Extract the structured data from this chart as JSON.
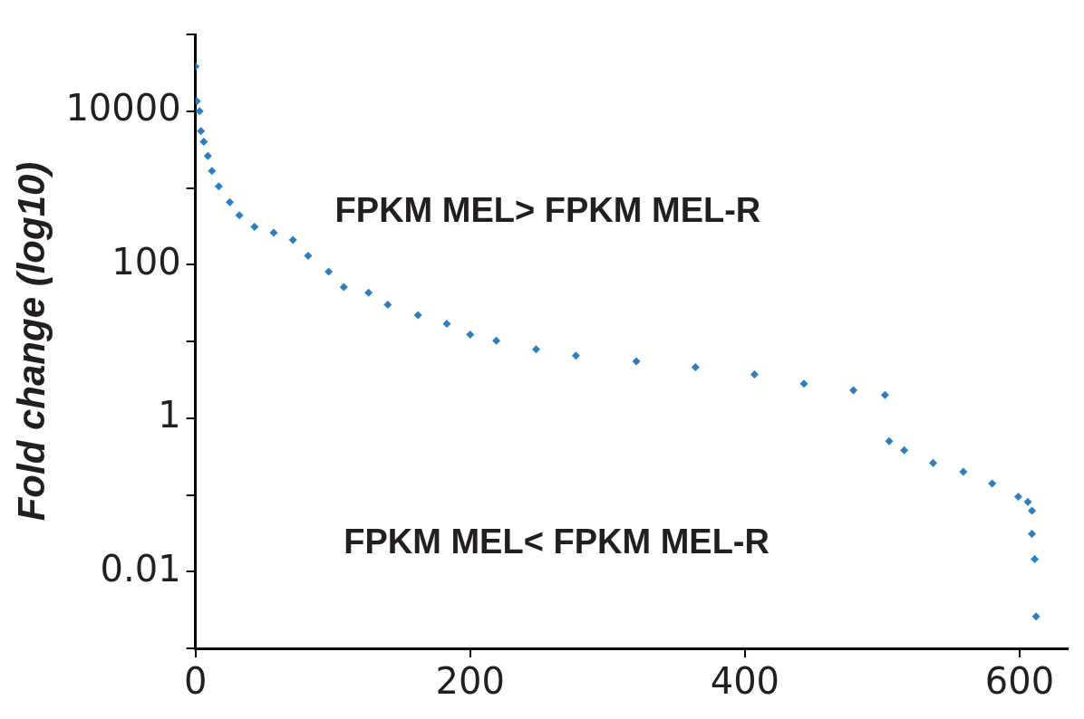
{
  "chart_data": {
    "type": "scatter",
    "ylabel": "Fold change (log10)",
    "log": "y",
    "marker": "diamond",
    "grid": false,
    "legend": false,
    "xlim": [
      0,
      635
    ],
    "xticks": [
      0,
      200,
      400,
      600
    ],
    "ylim": [
      0.001,
      100000
    ],
    "yticks": [
      {
        "value": 0.001,
        "label": null
      },
      0.01,
      {
        "value": 0.1,
        "label": null
      },
      1,
      {
        "value": 10,
        "label": null
      },
      100,
      {
        "value": 1000,
        "label": null
      },
      10000,
      {
        "value": 100000,
        "label": null
      }
    ],
    "annotations": [
      "FPKM MEL> FPKM MEL-R",
      "FPKM MEL< FPKM MEL-R"
    ],
    "series": [
      {
        "color": "#2b7fc0",
        "x": [
          0,
          1,
          3,
          4,
          6,
          9,
          12,
          17,
          25,
          32,
          43,
          57,
          71,
          82,
          97,
          108,
          126,
          140,
          162,
          183,
          200,
          219,
          248,
          277,
          321,
          364,
          407,
          443,
          479,
          502,
          505,
          516,
          537,
          559,
          580,
          599,
          606,
          609,
          609,
          611,
          612
        ],
        "values": [
          38000,
          13500,
          10000,
          5500,
          4000,
          2600,
          1660,
          1050,
          650,
          440,
          310,
          260,
          210,
          130,
          81,
          51,
          43,
          30,
          22,
          17,
          12.3,
          10.2,
          7.9,
          6.5,
          5.5,
          4.6,
          3.7,
          2.8,
          2.3,
          2.0,
          0.5,
          0.38,
          0.26,
          0.2,
          0.14,
          0.095,
          0.081,
          0.062,
          0.031,
          0.0145,
          0.0026
        ]
      }
    ]
  }
}
